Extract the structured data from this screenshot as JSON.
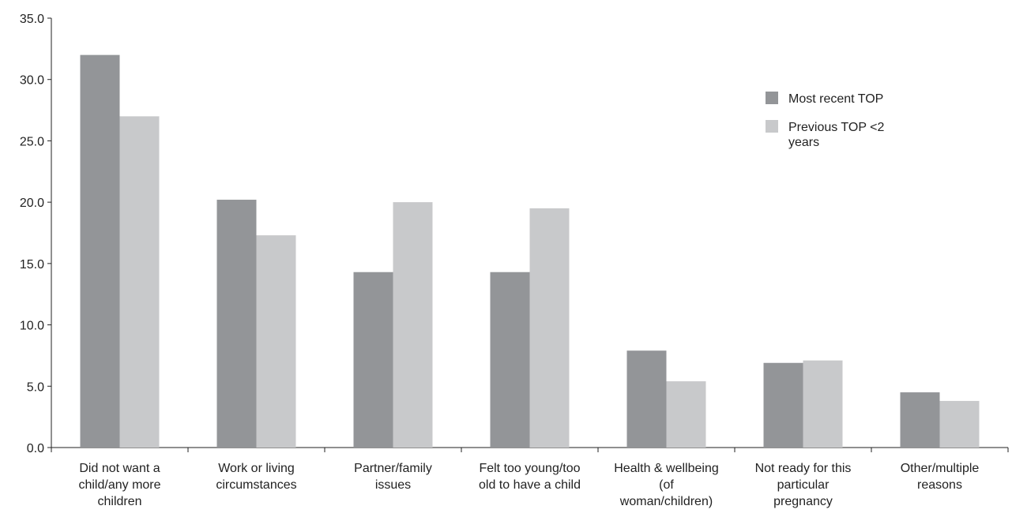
{
  "chart_data": {
    "type": "bar",
    "categories": [
      [
        "Did not want a",
        "child/any more",
        "children"
      ],
      [
        "Work or living",
        "circumstances"
      ],
      [
        "Partner/family",
        "issues"
      ],
      [
        "Felt too young/too",
        "old to have a child"
      ],
      [
        "Health & wellbeing",
        "(of",
        "woman/children)"
      ],
      [
        "Not ready for this",
        "particular",
        "pregnancy"
      ],
      [
        "Other/multiple",
        "reasons"
      ]
    ],
    "series": [
      {
        "name": "Most recent TOP",
        "color": "#939598",
        "values": [
          32.0,
          20.2,
          14.3,
          14.3,
          7.9,
          6.9,
          4.5
        ]
      },
      {
        "name": "Previous TOP <2 years",
        "legend_lines": [
          "Previous TOP <2",
          "years"
        ],
        "color": "#c8c9cb",
        "values": [
          27.0,
          17.3,
          20.0,
          19.5,
          5.4,
          7.1,
          3.8
        ]
      }
    ],
    "yticks": [
      "0.0",
      "5.0",
      "10.0",
      "15.0",
      "20.0",
      "25.0",
      "30.0",
      "35.0"
    ],
    "ylim": [
      0,
      35
    ],
    "grid": false,
    "legend_position": "top-right",
    "axis_color": "#222222"
  }
}
